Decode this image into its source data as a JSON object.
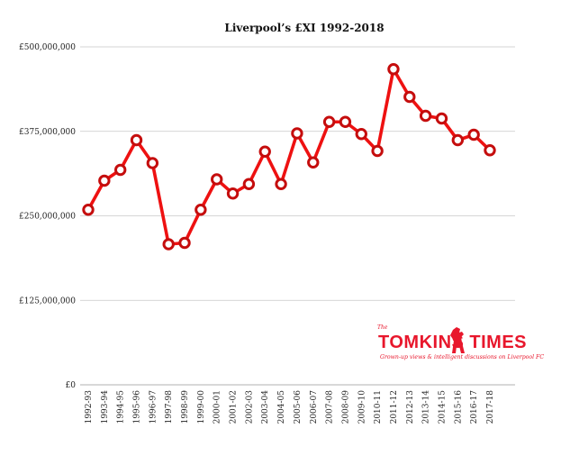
{
  "chart_data": {
    "type": "line",
    "title": "Liverpool’s £XI 1992-2018",
    "xlabel": "",
    "ylabel": "",
    "ylim": [
      0,
      500000000
    ],
    "yticks": [
      0,
      125000000,
      250000000,
      375000000,
      500000000
    ],
    "ytick_labels": [
      "£0",
      "£125,000,000",
      "£250,000,000",
      "£375,000,000",
      "£500,000,000"
    ],
    "grid": true,
    "categories": [
      "1992-93",
      "1993-94",
      "1994-95",
      "1995-96",
      "1996-97",
      "1997-98",
      "1998-99",
      "1999-00",
      "2000-01",
      "2001-02",
      "2002-03",
      "2003-04",
      "2004-05",
      "2005-06",
      "2006-07",
      "2007-08",
      "2008-09",
      "2009-10",
      "2010-11",
      "2011-12",
      "2012-13",
      "2013-14",
      "2014-15",
      "2015-16",
      "2016-17",
      "2017-18"
    ],
    "series": [
      {
        "name": "£XI",
        "color": "#ee1111",
        "values": [
          259000000,
          302000000,
          318000000,
          362000000,
          328000000,
          208000000,
          210000000,
          259000000,
          304000000,
          283000000,
          297000000,
          345000000,
          297000000,
          372000000,
          329000000,
          389000000,
          389000000,
          371000000,
          346000000,
          467000000,
          426000000,
          398000000,
          394000000,
          362000000,
          370000000,
          347000000
        ]
      }
    ]
  },
  "watermark": {
    "the": "The",
    "name": "TOMKINS TIMES",
    "tagline": "Grown-up views & intelligent discussions on Liverpool FC",
    "color": "#e8172c"
  }
}
